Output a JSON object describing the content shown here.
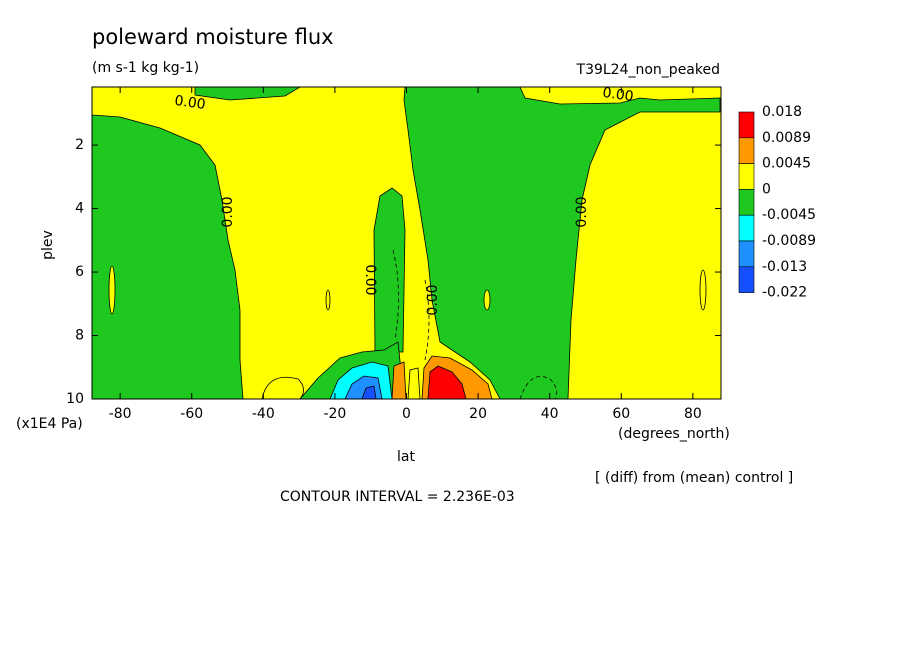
{
  "chart_data": {
    "type": "contour",
    "title": "poleward moisture flux",
    "subtitle": "(m s-1 kg kg-1)",
    "dataset": "T39L24_non_peaked",
    "x_label": "lat",
    "x_units": "(degrees_north)",
    "y_label": "plev",
    "y_units": "(x1E4 Pa)",
    "xlim": [
      -87.86,
      87.86
    ],
    "xticks": [
      -80,
      -60,
      -40,
      -20,
      0,
      20,
      40,
      60,
      80
    ],
    "ylim": [
      10,
      0.17
    ],
    "yticks": [
      2,
      4,
      6,
      8,
      10
    ],
    "colorbar": {
      "levels": [
        0.018,
        0.0089,
        0.0045,
        0,
        -0.0045,
        -0.0089,
        -0.013,
        -0.022
      ],
      "colors": [
        "#ff0000",
        "#ff9900",
        "#ffff00",
        "#1ec81e",
        "#00ffff",
        "#1e90ff",
        "#1450ff"
      ]
    },
    "contour_labels": [
      "0.00",
      "0.00",
      "0.00",
      "0.00",
      "0.00",
      "0.00"
    ],
    "annotations": [
      "[ (diff) from (mean) control ]",
      "CONTOUR INTERVAL = 2.236E-03"
    ]
  }
}
